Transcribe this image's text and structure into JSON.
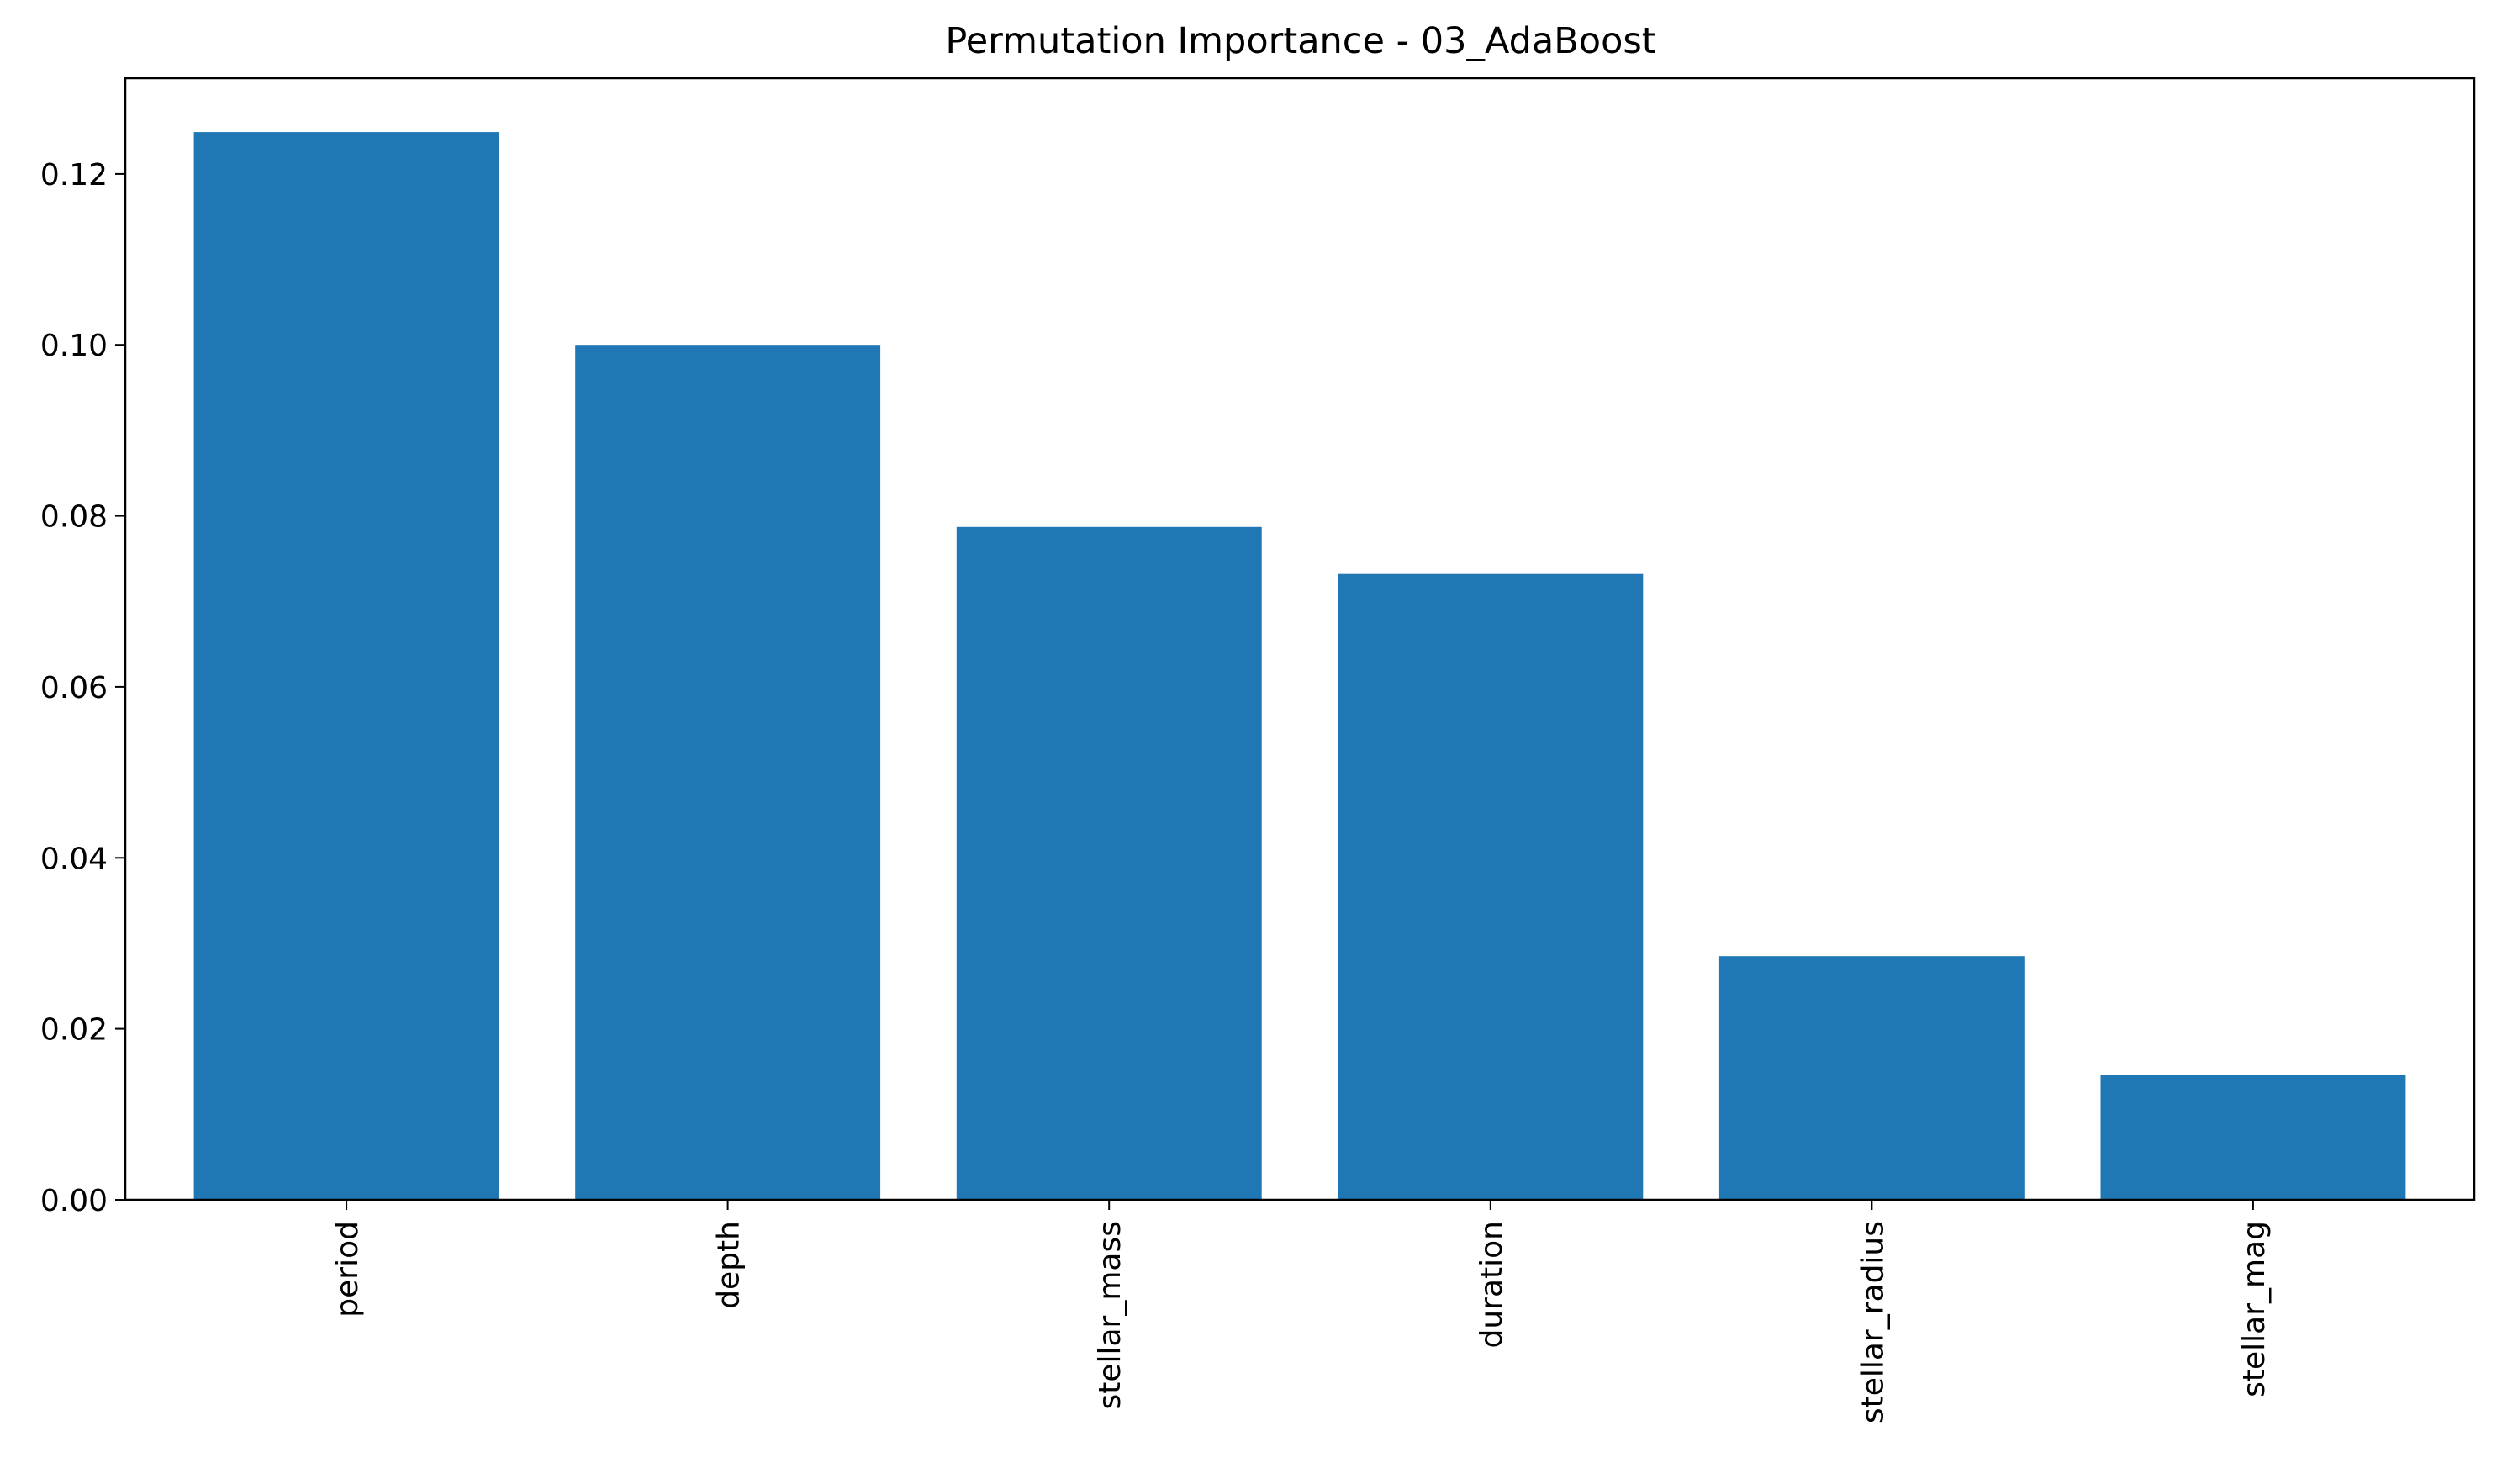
{
  "chart_data": {
    "type": "bar",
    "title": "Permutation Importance - 03_AdaBoost",
    "xlabel": "",
    "ylabel": "",
    "categories": [
      "period",
      "depth",
      "stellar_mass",
      "duration",
      "stellar_radius",
      "stellar_mag"
    ],
    "values": [
      0.1249,
      0.1,
      0.0787,
      0.0732,
      0.0285,
      0.0146
    ],
    "ylim": [
      0,
      0.1312
    ],
    "y_ticks": [
      0.0,
      0.02,
      0.04,
      0.06,
      0.08,
      0.1,
      0.12
    ],
    "y_tick_labels": [
      "0.00",
      "0.02",
      "0.04",
      "0.06",
      "0.08",
      "0.10",
      "0.12"
    ],
    "x_tick_rotation": "vertical",
    "grid": false,
    "legend": "none",
    "bar_color": "#1f77b4"
  }
}
